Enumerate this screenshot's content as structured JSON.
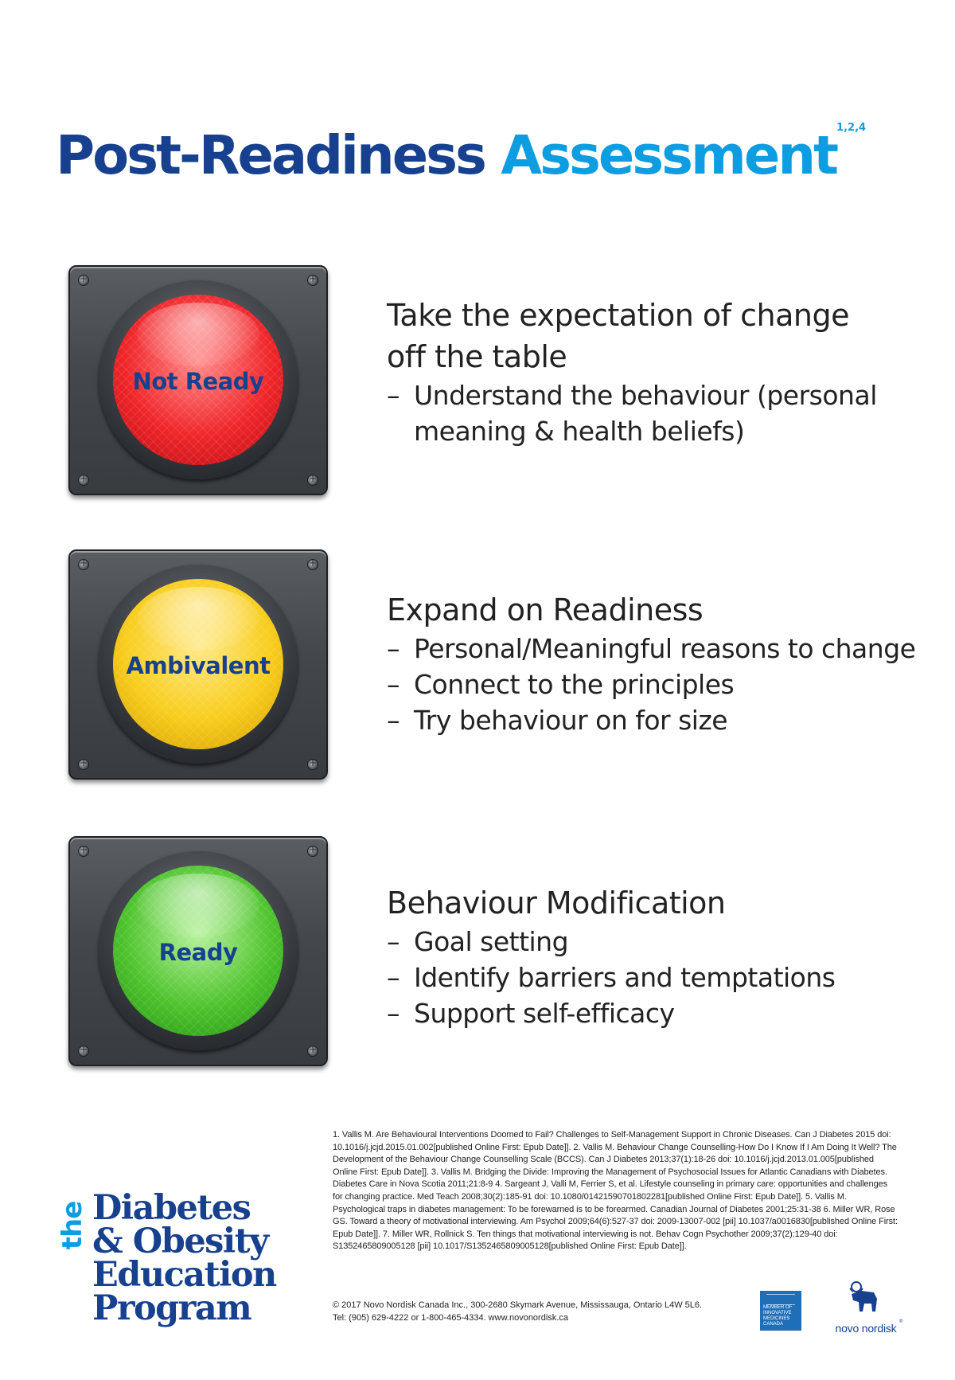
{
  "title": {
    "part1": "Post-Readiness",
    "part2": "Assessment",
    "superscript": "1,2,4"
  },
  "stages": [
    {
      "signal_label": "Not Ready",
      "signal_color": "#e8272b",
      "heading_line1": "Take the expectation of change",
      "heading_line2": "off the table",
      "bullets": [
        "Understand the behaviour (personal meaning & health beliefs)"
      ]
    },
    {
      "signal_label": "Ambivalent",
      "signal_color": "#f5c518",
      "heading_line1": "Expand on Readiness",
      "bullets": [
        "Personal/Meaningful reasons to change",
        "Connect to the principles",
        "Try behaviour on for size"
      ]
    },
    {
      "signal_label": "Ready",
      "signal_color": "#45b52b",
      "heading_line1": "Behaviour Modification",
      "bullets": [
        "Goal setting",
        "Identify barriers and temptations",
        "Support self-efficacy"
      ]
    }
  ],
  "references": "1. Vallis M. Are Behavioural Interventions Doomed to Fail? Challenges to Self-Management Support in Chronic Diseases. Can J Diabetes 2015 doi: 10.1016/j.jcjd.2015.01.002[published Online First: Epub Date]].   2. Vallis M. Behaviour Change Counselling-How Do I Know If I Am Doing It Well? The Development of the Behaviour Change Counselling Scale (BCCS). Can J Diabetes 2013;37(1):18-26 doi: 10.1016/j.jcjd.2013.01.005[published Online First: Epub Date]].   3. Vallis M. Bridging the Divide: Improving the Management of Psychosocial Issues for Atlantic Canadians with Diabetes. Diabetes Care in Nova Scotia 2011;21:8-9   4. Sargeant J, Valli M, Ferrier S, et al. Lifestyle counseling in primary care: opportunities and challenges for changing practice. Med Teach 2008;30(2):185-91 doi: 10.1080/01421590701802281[published Online First: Epub Date]]. 5. Vallis M. Psychological traps in diabetes management: To be forewarned is to be forearmed. Canadian Journal of Diabetes 2001;25:31-38   6. Miller WR, Rose GS. Toward a theory of motivational interviewing. Am Psychol 2009;64(6):527-37 doi: 2009-13007-002 [pii] 10.1037/a0016830[published Online First: Epub Date]].   7.  Miller WR, Rollnick S. Ten things that motivational interviewing is not. Behav Cogn Psychother 2009;37(2):129-40 doi: S1352465809005128 [pii] 10.1017/S1352465809005128[published Online First: Epub Date]].",
  "copyright_line1": "© 2017   Novo Nordisk Canada Inc., 300-2680 Skymark Avenue, Mississauga, Ontario L4W 5L6.",
  "copyright_line2": "Tel: (905) 629-4222 or 1-800-465-4334. www.novonordisk.ca",
  "program_logo": {
    "the": "the",
    "line1": "Diabetes",
    "line2": "& Obesity",
    "line3": "Education",
    "line4": "Program"
  },
  "imc_logo_text": "MEMBER OF INNOVATIVE MEDICINES CANADA",
  "novo_logo_text": "novo nordisk",
  "novo_logo_reg": "®",
  "colors": {
    "title_dark": "#17418f",
    "title_light": "#0d9de0",
    "signal_housing": "#44484d"
  }
}
